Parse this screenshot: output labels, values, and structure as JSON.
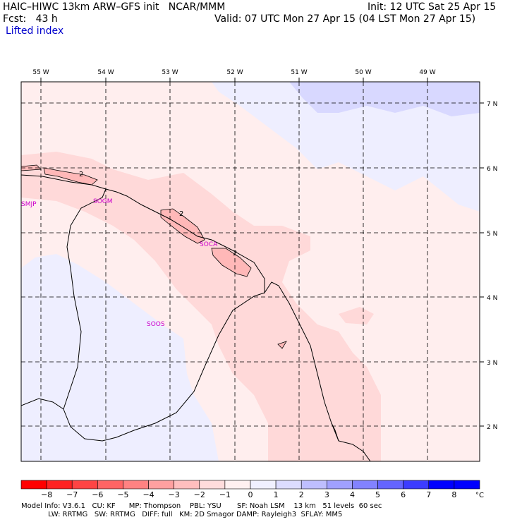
{
  "header": {
    "model_title": "HAIC–HIWC 13km ARW–GFS init   NCAR/MMM",
    "init": "Init: 12 UTC Sat 25 Apr 15",
    "fcst": "Fcst:   43 h",
    "valid": "Valid: 07 UTC Mon 27 Apr 15 (04 LST Mon 27 Apr 15)",
    "field": "Lifted index"
  },
  "axes": {
    "lon_labels": [
      "55 W",
      "54 W",
      "53 W",
      "52 W",
      "51 W",
      "50 W",
      "49 W"
    ],
    "lat_labels": [
      "7 N",
      "6 N",
      "5 N",
      "4 N",
      "3 N",
      "2 N"
    ]
  },
  "stations": [
    "SMJP",
    "SOGM",
    "SOCA",
    "SOOS"
  ],
  "contour_labels": [
    "2",
    "2",
    "2"
  ],
  "colorbar": {
    "labels": [
      "−8",
      "−7",
      "−6",
      "−5",
      "−4",
      "−3",
      "−2",
      "−1",
      "0",
      "1",
      "2",
      "3",
      "4",
      "5",
      "6",
      "7",
      "8"
    ],
    "unit": "°C",
    "colors": [
      "#ff0000",
      "#ff2222",
      "#ff4444",
      "#ff6464",
      "#ff8282",
      "#ffa0a0",
      "#ffbebe",
      "#ffdcdc",
      "#fff0f0",
      "#f0f0ff",
      "#dcdcff",
      "#bebeff",
      "#a0a0ff",
      "#8282ff",
      "#6464ff",
      "#3c3cff",
      "#0000ff"
    ]
  },
  "footer": {
    "line1": "Model Info: V3.6.1   CU: KF      MP: Thompson    PBL: YSU       SF: Noah LSM    13 km   51 levels  60 sec",
    "line2": "            LW: RRTMG   SW: RRTMG   DIFF: full   KM: 2D Smagor DAMP: Rayleigh3  SFLAY: MM5"
  },
  "colors": {
    "light_red": "#ffd9d9",
    "pale_red": "#ffeeee",
    "pale_blue": "#eeeeff",
    "light_blue": "#d8d8ff",
    "mid_red": "#ffb8b8",
    "station": "#cc00cc"
  }
}
